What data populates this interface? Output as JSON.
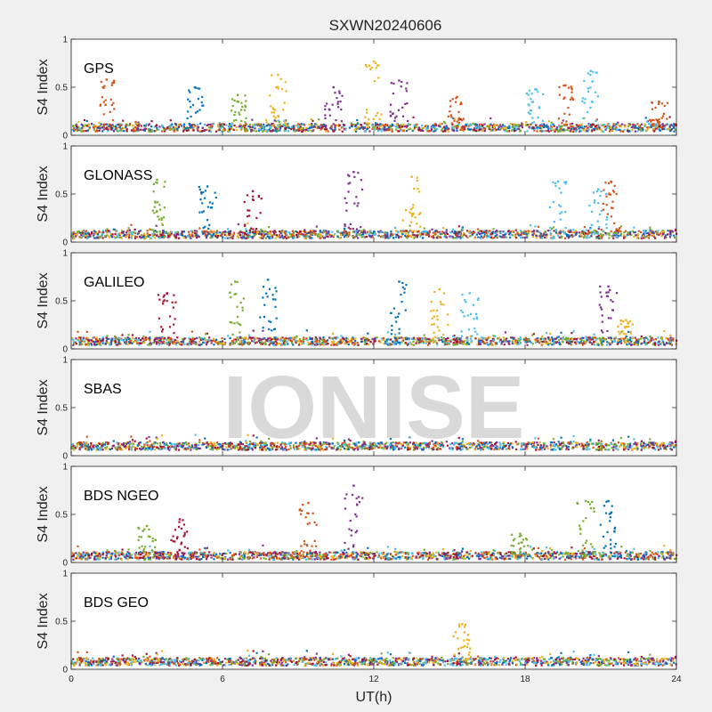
{
  "chart_data": {
    "type": "scatter",
    "title": "SXWN20240606",
    "xlabel": "UT(h)",
    "ylabel": "S4 Index",
    "xlim": [
      0,
      24
    ],
    "ylim": [
      0,
      1
    ],
    "xticks": [
      "0",
      "6",
      "12",
      "18",
      "24"
    ],
    "yticks": [
      "0",
      "0.5",
      "1"
    ],
    "watermark": "IONISE",
    "colors": [
      "#0072BD",
      "#D95319",
      "#EDB120",
      "#7E2F8E",
      "#77AC30",
      "#4DBEEE",
      "#A2142F"
    ],
    "panels": [
      {
        "name": "GPS",
        "baseline": 0.08,
        "spikes": [
          {
            "x": 1.4,
            "y": 0.58,
            "series": 1
          },
          {
            "x": 4.9,
            "y": 0.5,
            "series": 0
          },
          {
            "x": 6.6,
            "y": 0.42,
            "series": 4
          },
          {
            "x": 8.2,
            "y": 0.63,
            "series": 2
          },
          {
            "x": 10.4,
            "y": 0.5,
            "series": 3
          },
          {
            "x": 12.0,
            "y": 0.77,
            "series": 2
          },
          {
            "x": 13.0,
            "y": 0.57,
            "series": 3
          },
          {
            "x": 15.3,
            "y": 0.4,
            "series": 1
          },
          {
            "x": 18.4,
            "y": 0.48,
            "series": 5
          },
          {
            "x": 19.6,
            "y": 0.52,
            "series": 1
          },
          {
            "x": 20.6,
            "y": 0.67,
            "series": 5
          },
          {
            "x": 23.3,
            "y": 0.35,
            "series": 1
          }
        ]
      },
      {
        "name": "GLONASS",
        "baseline": 0.08,
        "spikes": [
          {
            "x": 3.4,
            "y": 0.65,
            "series": 4
          },
          {
            "x": 5.4,
            "y": 0.58,
            "series": 0
          },
          {
            "x": 7.2,
            "y": 0.53,
            "series": 6
          },
          {
            "x": 11.2,
            "y": 0.73,
            "series": 3
          },
          {
            "x": 13.5,
            "y": 0.68,
            "series": 2
          },
          {
            "x": 19.3,
            "y": 0.63,
            "series": 5
          },
          {
            "x": 20.9,
            "y": 0.55,
            "series": 5
          },
          {
            "x": 21.4,
            "y": 0.63,
            "series": 1
          }
        ]
      },
      {
        "name": "GALILEO",
        "baseline": 0.08,
        "spikes": [
          {
            "x": 3.8,
            "y": 0.58,
            "series": 6
          },
          {
            "x": 6.5,
            "y": 0.7,
            "series": 4
          },
          {
            "x": 7.8,
            "y": 0.72,
            "series": 0
          },
          {
            "x": 13.0,
            "y": 0.7,
            "series": 0
          },
          {
            "x": 14.6,
            "y": 0.62,
            "series": 2
          },
          {
            "x": 15.8,
            "y": 0.58,
            "series": 5
          },
          {
            "x": 21.3,
            "y": 0.65,
            "series": 3
          },
          {
            "x": 22.0,
            "y": 0.3,
            "series": 2
          }
        ]
      },
      {
        "name": "SBAS",
        "baseline": 0.1,
        "spikes": []
      },
      {
        "name": "BDS NGEO",
        "baseline": 0.07,
        "spikes": [
          {
            "x": 3.0,
            "y": 0.38,
            "series": 4
          },
          {
            "x": 4.3,
            "y": 0.45,
            "series": 6
          },
          {
            "x": 9.4,
            "y": 0.62,
            "series": 1
          },
          {
            "x": 11.2,
            "y": 0.8,
            "series": 3
          },
          {
            "x": 17.8,
            "y": 0.3,
            "series": 4
          },
          {
            "x": 20.4,
            "y": 0.64,
            "series": 4
          },
          {
            "x": 21.3,
            "y": 0.64,
            "series": 0
          }
        ]
      },
      {
        "name": "BDS GEO",
        "baseline": 0.08,
        "spikes": [
          {
            "x": 15.5,
            "y": 0.47,
            "series": 2
          }
        ]
      }
    ]
  }
}
